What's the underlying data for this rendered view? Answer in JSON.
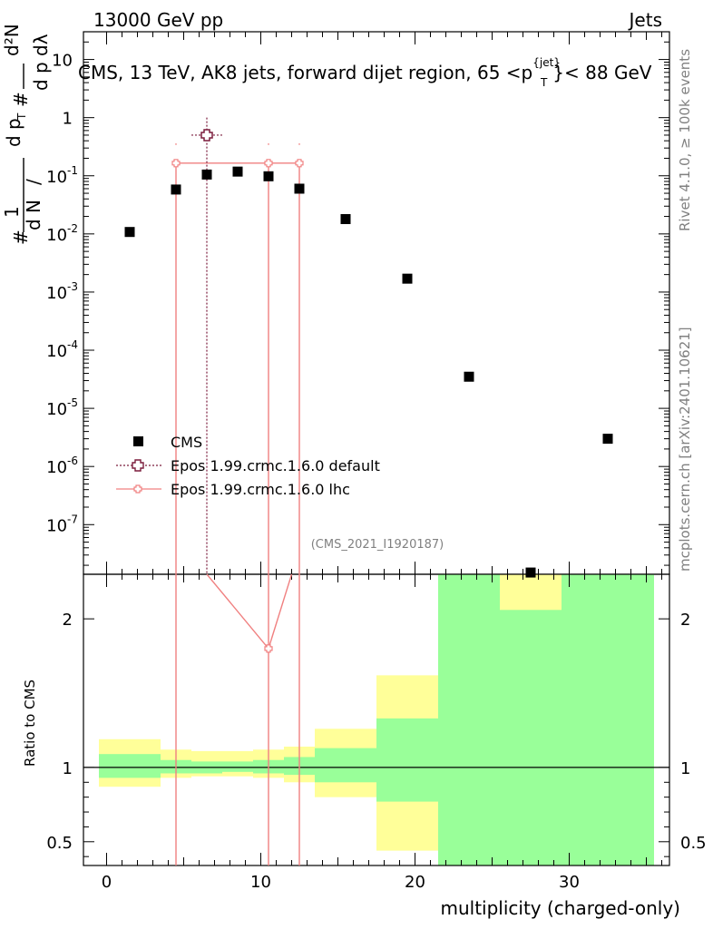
{
  "header": {
    "left": "13000 GeV pp",
    "right": "Jets",
    "title": "CMS, 13 TeV, AK8 jets, forward dijet region, 65 <p",
    "title_sup": "{jet}",
    "title_sub": "T",
    "title_tail": "}< 88 GeV"
  },
  "side": {
    "rivet": "Rivet 4.1.0, ≥ 100k events",
    "mcplots": "mcplots.cern.ch [arXiv:2401.10621]"
  },
  "watermark": "(CMS_2021_I1920187)",
  "ylabel": {
    "hash": "#",
    "one": "1",
    "dn": "d N",
    "slash": "/",
    "dp": "d p",
    "sub_t": "T",
    "d2n": "d²N",
    "dpt": "d p",
    "dlambda": "dλ"
  },
  "legend": [
    {
      "label": "CMS",
      "style": "square",
      "color": "#000000"
    },
    {
      "label": "Epos 1.99.crmc.1.6.0 default",
      "style": "dotted-cross",
      "color": "#7b1c3c"
    },
    {
      "label": "Epos 1.99.crmc.1.6.0 lhc",
      "style": "solid-cross",
      "color": "#f08080"
    }
  ],
  "ratio_ylabel": "Ratio to CMS",
  "xlabel": "multiplicity (charged-only)",
  "chart_data": {
    "type": "scatter",
    "xlim": [
      -1.5,
      36.5
    ],
    "ylim_log": [
      1.4e-08,
      30
    ],
    "ratio_ylim": [
      0.34,
      2.3
    ],
    "top_ticks": [
      {
        "exp": "-7",
        "value": 1e-07
      },
      {
        "exp": "-6",
        "value": 1e-06
      },
      {
        "exp": "-5",
        "value": 1e-05
      },
      {
        "exp": "-4",
        "value": 0.0001
      },
      {
        "exp": "-3",
        "value": 0.001
      },
      {
        "exp": "-2",
        "value": 0.01
      },
      {
        "exp": "-1",
        "value": 0.1
      },
      {
        "exp": "",
        "value": 1,
        "text": "1"
      },
      {
        "exp": "",
        "value": 10,
        "text": "10"
      }
    ],
    "x_ticks": [
      0,
      10,
      20,
      30
    ],
    "ratio_ticks": [
      {
        "value": 0.5,
        "text": "0.5"
      },
      {
        "value": 1,
        "text": "1"
      },
      {
        "value": 2,
        "text": "2"
      }
    ],
    "cms": [
      {
        "x": 1.5,
        "y": 0.0108
      },
      {
        "x": 4.5,
        "y": 0.058
      },
      {
        "x": 6.5,
        "y": 0.105
      },
      {
        "x": 8.5,
        "y": 0.118
      },
      {
        "x": 10.5,
        "y": 0.098
      },
      {
        "x": 12.5,
        "y": 0.06
      },
      {
        "x": 15.5,
        "y": 0.018
      },
      {
        "x": 19.5,
        "y": 0.0017
      },
      {
        "x": 23.5,
        "y": 3.5e-05
      },
      {
        "x": 27.5,
        "y": 1.5e-08
      },
      {
        "x": 32.5,
        "y": 3e-06
      }
    ],
    "epos_default": [
      {
        "x": 6.5,
        "y": 0.5,
        "xerr": 1.0,
        "ylo": 1e-09,
        "yhi": 1.0
      }
    ],
    "epos_lhc": [
      {
        "x": 4.5,
        "y": 0.165
      },
      {
        "x": 10.5,
        "y": 0.165
      },
      {
        "x": 12.5,
        "y": 0.165
      },
      {
        "x": 4.5,
        "y": 0.165
      }
    ],
    "epos_lhc_points": [
      4.5,
      10.5,
      12.5
    ],
    "epos_lhc_ratio": {
      "x": 10.5,
      "y": 1.8
    },
    "ratio_bands": [
      {
        "x0": -0.5,
        "x1": 3.5,
        "green": [
          0.93,
          1.09
        ],
        "yellow": [
          0.87,
          1.19
        ]
      },
      {
        "x0": 3.5,
        "x1": 5.5,
        "green": [
          0.96,
          1.05
        ],
        "yellow": [
          0.93,
          1.12
        ]
      },
      {
        "x0": 5.5,
        "x1": 7.5,
        "green": [
          0.96,
          1.04
        ],
        "yellow": [
          0.94,
          1.11
        ]
      },
      {
        "x0": 7.5,
        "x1": 9.5,
        "green": [
          0.97,
          1.04
        ],
        "yellow": [
          0.94,
          1.11
        ]
      },
      {
        "x0": 9.5,
        "x1": 11.5,
        "green": [
          0.96,
          1.05
        ],
        "yellow": [
          0.93,
          1.12
        ]
      },
      {
        "x0": 11.5,
        "x1": 13.5,
        "green": [
          0.95,
          1.07
        ],
        "yellow": [
          0.9,
          1.14
        ]
      },
      {
        "x0": 13.5,
        "x1": 17.5,
        "green": [
          0.9,
          1.13
        ],
        "yellow": [
          0.8,
          1.26
        ]
      },
      {
        "x0": 17.5,
        "x1": 21.5,
        "green": [
          0.77,
          1.33
        ],
        "yellow": [
          0.44,
          1.62
        ]
      },
      {
        "x0": 21.5,
        "x1": 25.5,
        "green": [
          0.34,
          2.3
        ],
        "yellow": [
          0.34,
          2.3
        ]
      },
      {
        "x0": 25.5,
        "x1": 29.5,
        "green": [
          0.34,
          2.06
        ],
        "yellow": [
          0.34,
          2.3
        ]
      },
      {
        "x0": 29.5,
        "x1": 35.5,
        "green": [
          0.34,
          2.3
        ],
        "yellow": [
          0.34,
          2.3
        ]
      }
    ]
  }
}
